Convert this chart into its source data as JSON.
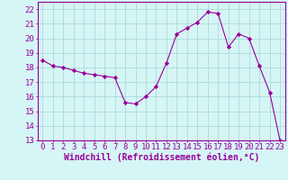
{
  "x": [
    0,
    1,
    2,
    3,
    4,
    5,
    6,
    7,
    8,
    9,
    10,
    11,
    12,
    13,
    14,
    15,
    16,
    17,
    18,
    19,
    20,
    21,
    22,
    23
  ],
  "y": [
    18.5,
    18.1,
    18.0,
    17.8,
    17.6,
    17.5,
    17.4,
    17.3,
    15.6,
    15.5,
    16.0,
    16.7,
    18.3,
    20.3,
    20.7,
    21.1,
    21.8,
    21.7,
    19.4,
    20.3,
    20.0,
    18.1,
    16.3,
    13.0
  ],
  "line_color": "#990099",
  "marker": "D",
  "marker_size": 2.2,
  "bg_color": "#d6f5f5",
  "grid_color": "#b0dede",
  "xlabel": "Windchill (Refroidissement éolien,°C)",
  "ylabel": "",
  "title": "",
  "xlim": [
    -0.5,
    23.5
  ],
  "ylim": [
    13,
    22.5
  ],
  "yticks": [
    13,
    14,
    15,
    16,
    17,
    18,
    19,
    20,
    21,
    22
  ],
  "xticks": [
    0,
    1,
    2,
    3,
    4,
    5,
    6,
    7,
    8,
    9,
    10,
    11,
    12,
    13,
    14,
    15,
    16,
    17,
    18,
    19,
    20,
    21,
    22,
    23
  ],
  "xtick_labels": [
    "0",
    "1",
    "2",
    "3",
    "4",
    "5",
    "6",
    "7",
    "8",
    "9",
    "10",
    "11",
    "12",
    "13",
    "14",
    "15",
    "16",
    "17",
    "18",
    "19",
    "20",
    "21",
    "22",
    "23"
  ],
  "font_color": "#990099",
  "font_size": 6.5,
  "label_font_size": 7.0
}
